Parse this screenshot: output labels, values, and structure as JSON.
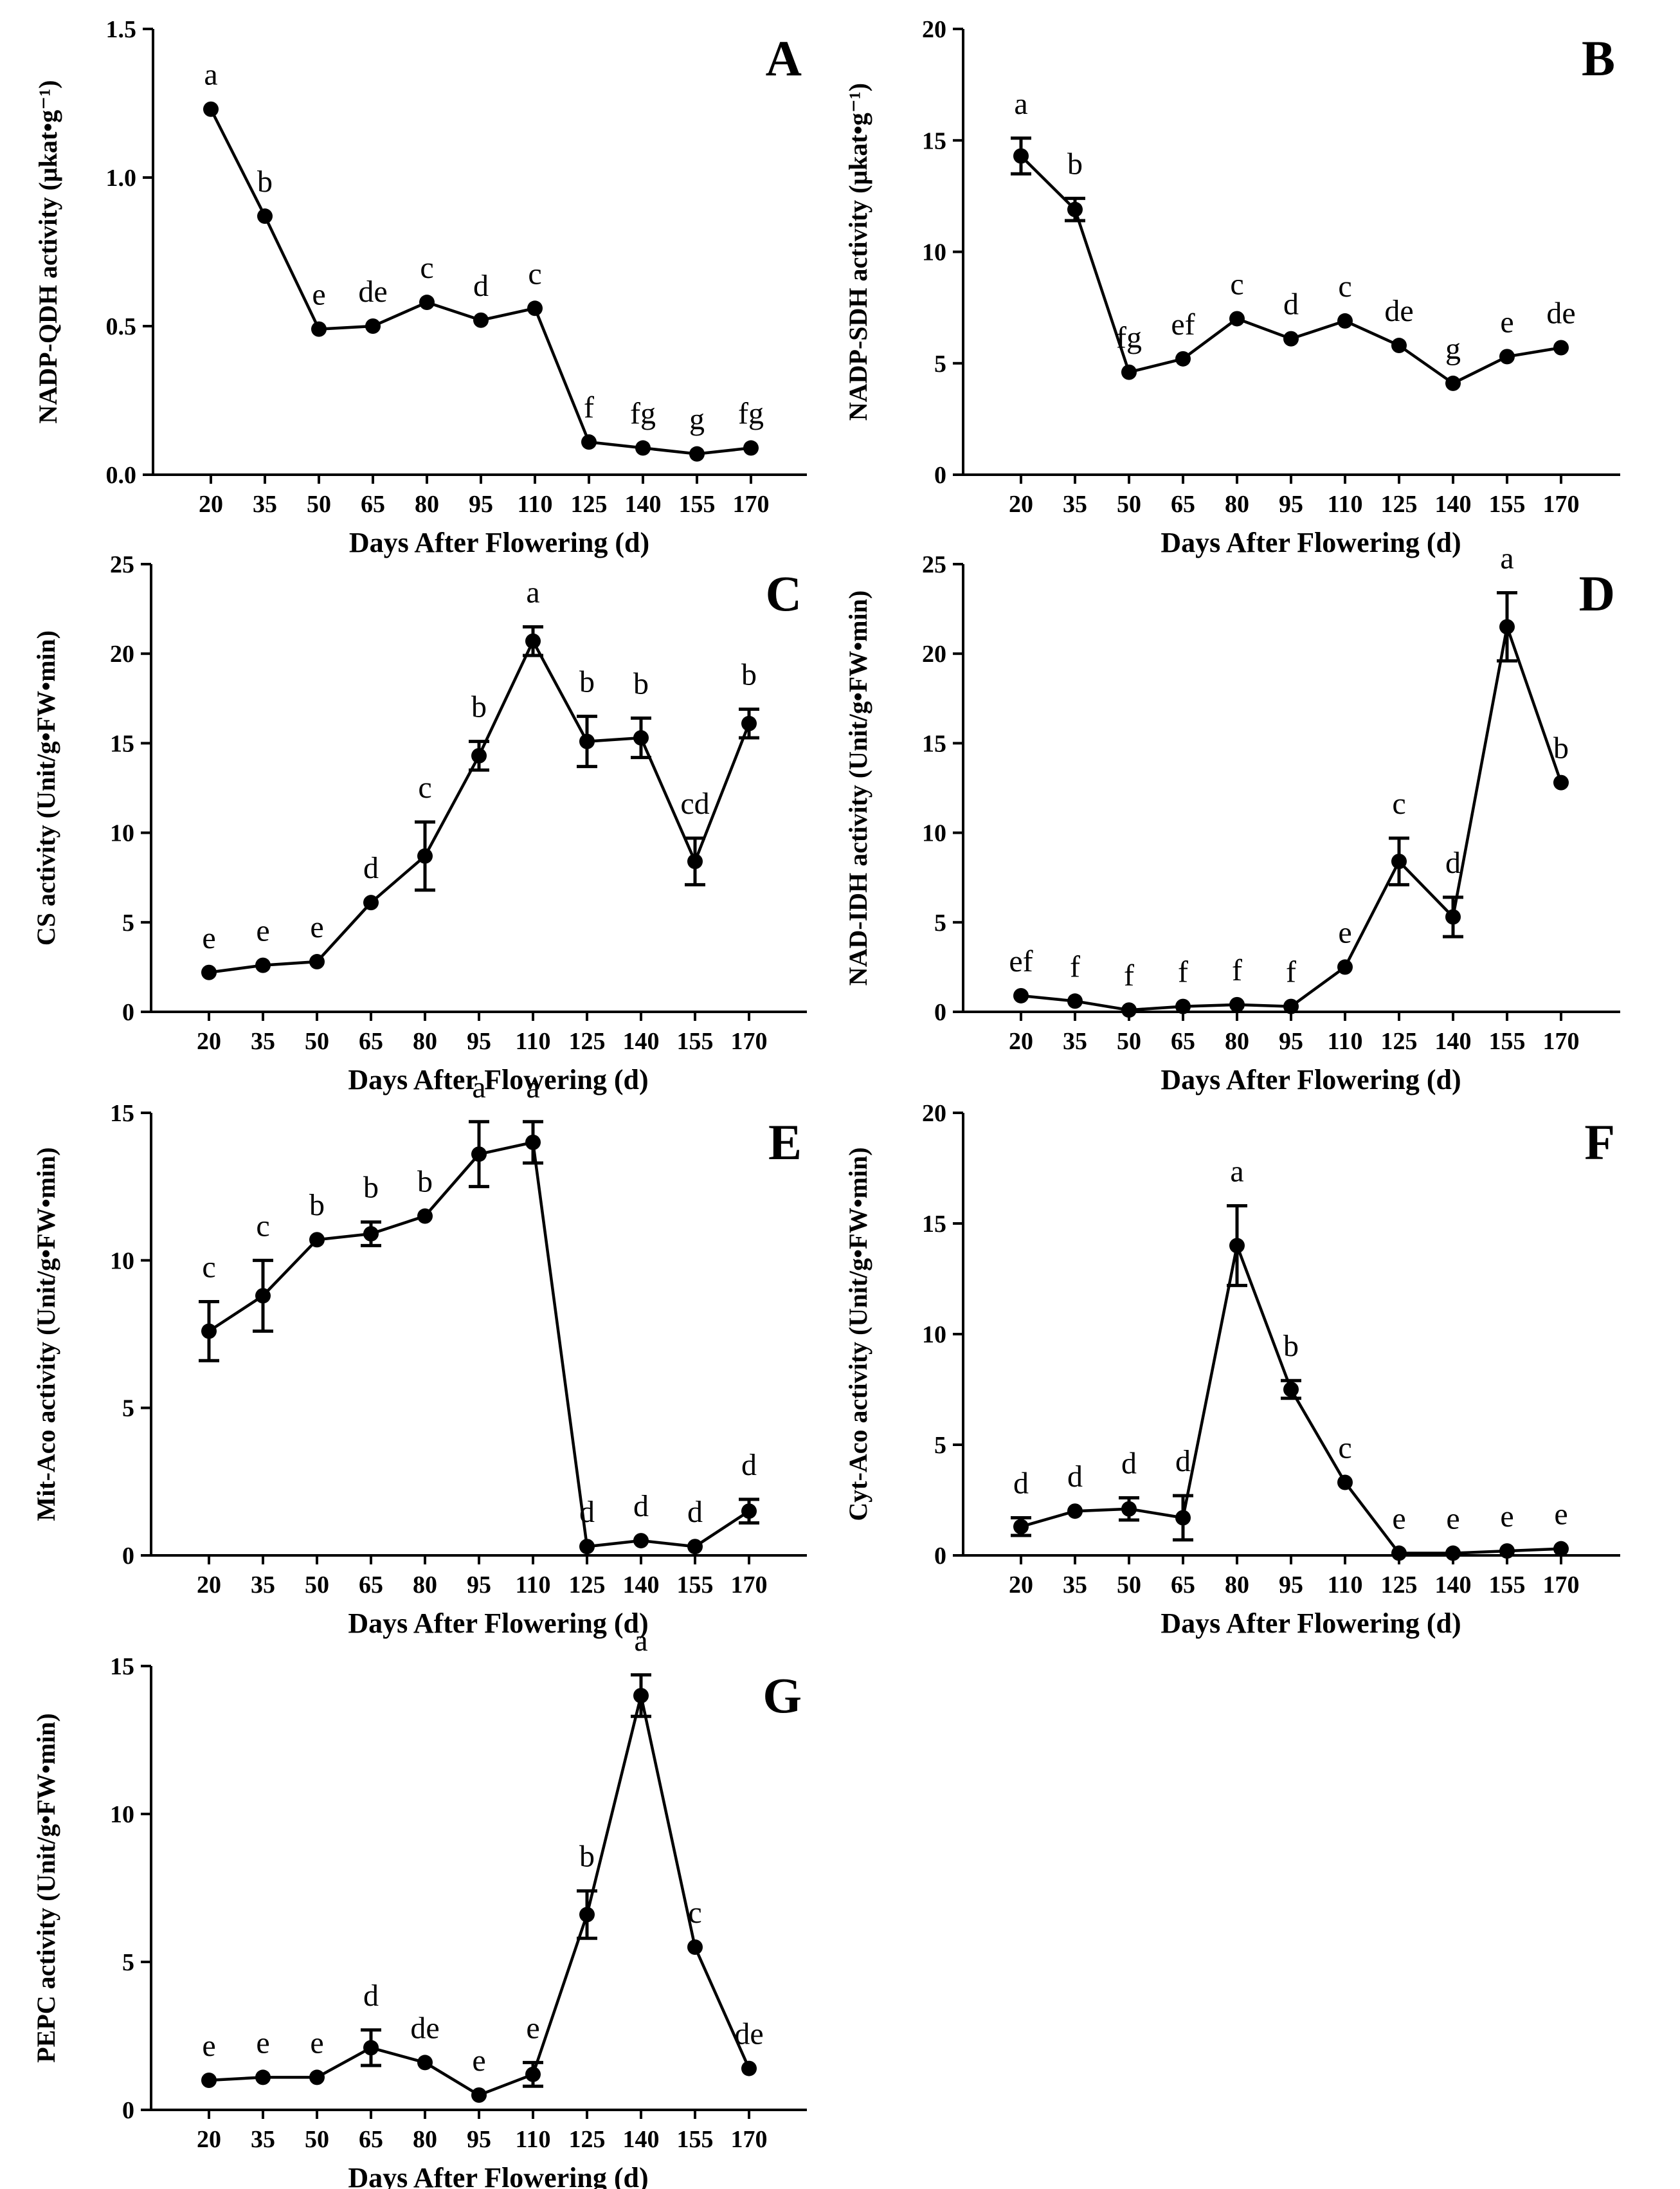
{
  "figure": {
    "panels": [
      "A",
      "B",
      "C",
      "D",
      "E",
      "F",
      "G"
    ]
  },
  "chart_data": [
    {
      "panel": "A",
      "type": "line",
      "ylabel": "NADP-QDH activity (μkat•g⁻¹)",
      "xlabel": "Days After Flowering (d)",
      "categories": [
        "20",
        "35",
        "50",
        "65",
        "80",
        "95",
        "110",
        "125",
        "140",
        "155",
        "170"
      ],
      "yticks": [
        0.0,
        0.5,
        1.0,
        1.5
      ],
      "ytick_labels": [
        "0.0",
        "0.5",
        "1.0",
        "1.5"
      ],
      "ylim": [
        0,
        1.5
      ],
      "values": [
        1.23,
        0.87,
        0.49,
        0.5,
        0.58,
        0.52,
        0.56,
        0.11,
        0.09,
        0.07,
        0.09
      ],
      "errors": [
        0,
        0,
        0,
        0,
        0,
        0,
        0,
        0,
        0,
        0,
        0
      ],
      "labels": [
        "a",
        "b",
        "e",
        "de",
        "c",
        "d",
        "c",
        "f",
        "fg",
        "g",
        "fg"
      ]
    },
    {
      "panel": "B",
      "type": "line",
      "ylabel": "NADP-SDH activity (μkat•g⁻¹)",
      "xlabel": "Days After Flowering (d)",
      "categories": [
        "20",
        "35",
        "50",
        "65",
        "80",
        "95",
        "110",
        "125",
        "140",
        "155",
        "170"
      ],
      "yticks": [
        0,
        5,
        10,
        15,
        20
      ],
      "ytick_labels": [
        "0",
        "5",
        "10",
        "15",
        "20"
      ],
      "ylim": [
        0,
        20
      ],
      "values": [
        14.3,
        11.9,
        4.6,
        5.2,
        7.0,
        6.1,
        6.9,
        5.8,
        4.1,
        5.3,
        5.7
      ],
      "errors": [
        0.8,
        0.5,
        0,
        0,
        0,
        0,
        0,
        0,
        0,
        0,
        0
      ],
      "labels": [
        "a",
        "b",
        "fg",
        "ef",
        "c",
        "d",
        "c",
        "de",
        "g",
        "e",
        "de"
      ]
    },
    {
      "panel": "C",
      "type": "line",
      "ylabel": "CS activity (Unit/g•FW•min)",
      "xlabel": "Days After Flowering (d)",
      "categories": [
        "20",
        "35",
        "50",
        "65",
        "80",
        "95",
        "110",
        "125",
        "140",
        "155",
        "170"
      ],
      "yticks": [
        0,
        5,
        10,
        15,
        20,
        25
      ],
      "ytick_labels": [
        "0",
        "5",
        "10",
        "15",
        "20",
        "25"
      ],
      "ylim": [
        0,
        25
      ],
      "values": [
        2.2,
        2.6,
        2.8,
        6.1,
        8.7,
        14.3,
        20.7,
        15.1,
        15.3,
        8.4,
        16.1
      ],
      "errors": [
        0,
        0,
        0,
        0,
        1.9,
        0.8,
        0.8,
        1.4,
        1.1,
        1.3,
        0.8
      ],
      "labels": [
        "e",
        "e",
        "e",
        "d",
        "c",
        "b",
        "a",
        "b",
        "b",
        "cd",
        "b"
      ]
    },
    {
      "panel": "D",
      "type": "line",
      "ylabel": "NAD-IDH activity (Unit/g•FW•min)",
      "xlabel": "Days After Flowering (d)",
      "categories": [
        "20",
        "35",
        "50",
        "65",
        "80",
        "95",
        "110",
        "125",
        "140",
        "155",
        "170"
      ],
      "yticks": [
        0,
        5,
        10,
        15,
        20,
        25
      ],
      "ytick_labels": [
        "0",
        "5",
        "10",
        "15",
        "20",
        "25"
      ],
      "ylim": [
        0,
        25
      ],
      "values": [
        0.9,
        0.6,
        0.1,
        0.3,
        0.4,
        0.3,
        2.5,
        8.4,
        5.3,
        21.5,
        12.8
      ],
      "errors": [
        0,
        0,
        0,
        0,
        0,
        0,
        0,
        1.3,
        1.1,
        1.9,
        0
      ],
      "labels": [
        "ef",
        "f",
        "f",
        "f",
        "f",
        "f",
        "e",
        "c",
        "d",
        "a",
        "b"
      ]
    },
    {
      "panel": "E",
      "type": "line",
      "ylabel": "Mit-Aco activity (Unit/g•FW•min)",
      "xlabel": "Days After Flowering (d)",
      "categories": [
        "20",
        "35",
        "50",
        "65",
        "80",
        "95",
        "110",
        "125",
        "140",
        "155",
        "170"
      ],
      "yticks": [
        0,
        5,
        10,
        15
      ],
      "ytick_labels": [
        "0",
        "5",
        "10",
        "15"
      ],
      "ylim": [
        0,
        15
      ],
      "values": [
        7.6,
        8.8,
        10.7,
        10.9,
        11.5,
        13.6,
        14.0,
        0.3,
        0.5,
        0.3,
        1.5
      ],
      "errors": [
        1.0,
        1.2,
        0,
        0.4,
        0,
        1.1,
        0.7,
        0,
        0,
        0,
        0.4
      ],
      "labels": [
        "c",
        "c",
        "b",
        "b",
        "b",
        "a",
        "a",
        "d",
        "d",
        "d",
        "d"
      ]
    },
    {
      "panel": "F",
      "type": "line",
      "ylabel": "Cyt-Aco activity (Unit/g•FW•min)",
      "xlabel": "Days After Flowering (d)",
      "categories": [
        "20",
        "35",
        "50",
        "65",
        "80",
        "95",
        "110",
        "125",
        "140",
        "155",
        "170"
      ],
      "yticks": [
        0,
        5,
        10,
        15,
        20
      ],
      "ytick_labels": [
        "0",
        "5",
        "10",
        "15",
        "20"
      ],
      "ylim": [
        0,
        20
      ],
      "values": [
        1.3,
        2.0,
        2.1,
        1.7,
        14.0,
        7.5,
        3.3,
        0.1,
        0.1,
        0.2,
        0.3
      ],
      "errors": [
        0.4,
        0,
        0.5,
        1.0,
        1.8,
        0.4,
        0,
        0,
        0,
        0,
        0
      ],
      "labels": [
        "d",
        "d",
        "d",
        "d",
        "a",
        "b",
        "c",
        "e",
        "e",
        "e",
        "e"
      ]
    },
    {
      "panel": "G",
      "type": "line",
      "ylabel": "PEPC activity (Unit/g•FW•min)",
      "xlabel": "Days After Flowering (d)",
      "categories": [
        "20",
        "35",
        "50",
        "65",
        "80",
        "95",
        "110",
        "125",
        "140",
        "155",
        "170"
      ],
      "yticks": [
        0,
        5,
        10,
        15
      ],
      "ytick_labels": [
        "0",
        "5",
        "10",
        "15"
      ],
      "ylim": [
        0,
        15
      ],
      "values": [
        1.0,
        1.1,
        1.1,
        2.1,
        1.6,
        0.5,
        1.2,
        6.6,
        14.0,
        5.5,
        1.4
      ],
      "errors": [
        0,
        0,
        0,
        0.6,
        0,
        0,
        0.4,
        0.8,
        0.7,
        0,
        0
      ],
      "labels": [
        "e",
        "e",
        "e",
        "d",
        "de",
        "e",
        "e",
        "b",
        "a",
        "c",
        "de"
      ]
    }
  ]
}
